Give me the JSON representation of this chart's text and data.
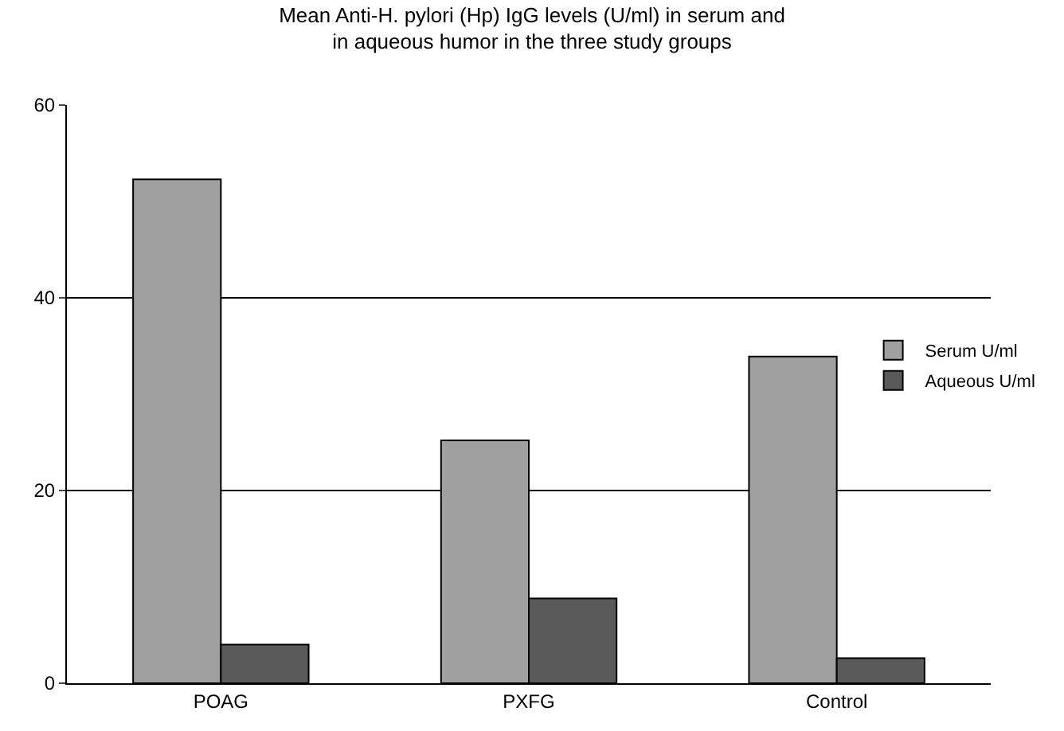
{
  "chart_data": {
    "type": "bar",
    "title": "Mean Anti-H. pylori (Hp) IgG levels (U/ml) in serum and\nin aqueous humor in the three study groups",
    "categories": [
      "POAG",
      "PXFG",
      "Control"
    ],
    "series": [
      {
        "name": "Serum U/ml",
        "color": "#a0a0a0",
        "values": [
          52.3,
          25.2,
          33.9
        ]
      },
      {
        "name": "Aqueous U/ml",
        "color": "#5a5a5a",
        "values": [
          4.0,
          8.8,
          2.6
        ]
      }
    ],
    "ylim": [
      0,
      60
    ],
    "yticks": [
      0,
      20,
      40,
      60
    ],
    "grid": "y",
    "legend": "right"
  }
}
